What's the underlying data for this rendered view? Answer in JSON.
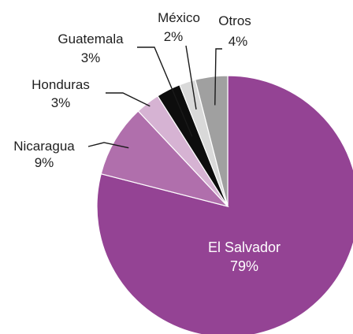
{
  "chart_data": {
    "type": "pie",
    "slices": [
      {
        "label": "El Salvador",
        "value": 79,
        "display": "79%",
        "color": "#944394"
      },
      {
        "label": "Nicaragua",
        "value": 9,
        "display": "9%",
        "color": "#b06fac"
      },
      {
        "label": "Honduras",
        "value": 3,
        "display": "3%",
        "color": "#d6b3d3"
      },
      {
        "label": "Guatemala",
        "value": 3,
        "display": "3%",
        "color": "#0d0d0d"
      },
      {
        "label": "México",
        "value": 2,
        "display": "2%",
        "color": "#d9d9d9"
      },
      {
        "label": "Otros",
        "value": 4,
        "display": "4%",
        "color": "#a0a0a0"
      }
    ]
  }
}
